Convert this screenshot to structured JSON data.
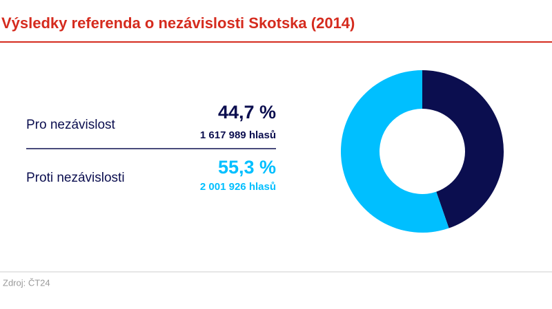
{
  "chart_data": {
    "type": "donut",
    "title": "Výsledky referenda o nezávislosti Skotska (2014)",
    "categories": [
      "Pro nezávislost",
      "Proti nezávislosti"
    ],
    "values": [
      44.7,
      55.3
    ],
    "value_labels": [
      "44,7 %",
      "55,3 %"
    ],
    "votes_labels": [
      "1 617 989 hlasů",
      "2 001 926 hlasů"
    ],
    "colors": [
      "#0b0e4f",
      "#00bfff"
    ],
    "source": "Zdroj: ČT24"
  }
}
